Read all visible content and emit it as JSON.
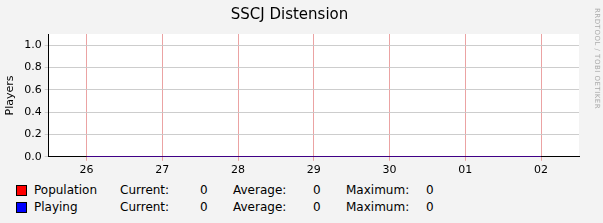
{
  "chart_data": {
    "type": "line",
    "title": "SSCJ Distension",
    "y_label": "Players",
    "categories": [
      "26",
      "27",
      "28",
      "29",
      "30",
      "01",
      "02"
    ],
    "series": [
      {
        "name": "Population",
        "color": "#ff0000",
        "values": [
          0,
          0,
          0,
          0,
          0,
          0,
          0
        ],
        "current": 0,
        "average": 0,
        "maximum": 0
      },
      {
        "name": "Playing",
        "color": "#0000ff",
        "values": [
          0,
          0,
          0,
          0,
          0,
          0,
          0
        ],
        "current": 0,
        "average": 0,
        "maximum": 0
      }
    ],
    "stat_labels": [
      "Current:",
      "Average:",
      "Maximum:"
    ],
    "side_text": "RRDTOOL / TOBI OETIKER",
    "ylim": [
      0,
      1.1
    ],
    "yticks": [
      {
        "value": 0,
        "label": "0.0"
      },
      0.2,
      0.4,
      0.6,
      0.8,
      {
        "value": 1,
        "label": "1.0"
      }
    ],
    "grid": true
  }
}
